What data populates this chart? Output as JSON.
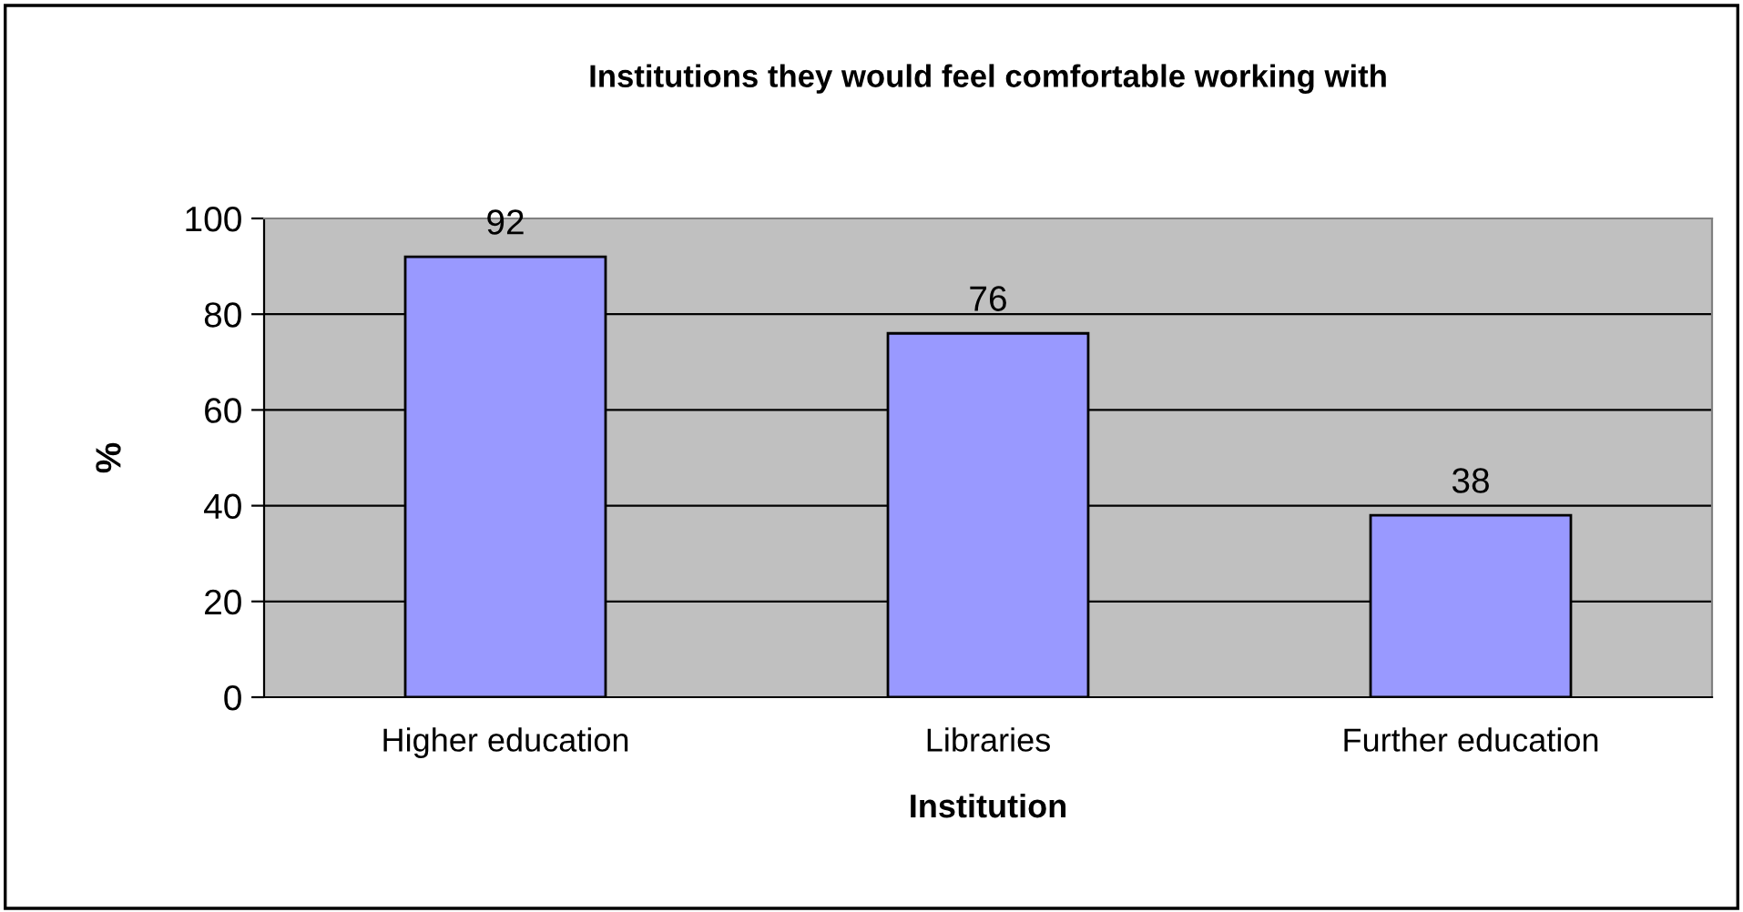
{
  "chart_data": {
    "type": "bar",
    "title": "Institutions they would feel comfortable working with",
    "xlabel": "Institution",
    "ylabel": "%",
    "categories": [
      "Higher education",
      "Libraries",
      "Further education"
    ],
    "values": [
      92,
      76,
      38
    ],
    "color": "#9999ff",
    "ylim": [
      0,
      100
    ],
    "yticks": [
      0,
      20,
      40,
      60,
      80,
      100
    ],
    "grid": "y",
    "data_labels": true
  }
}
